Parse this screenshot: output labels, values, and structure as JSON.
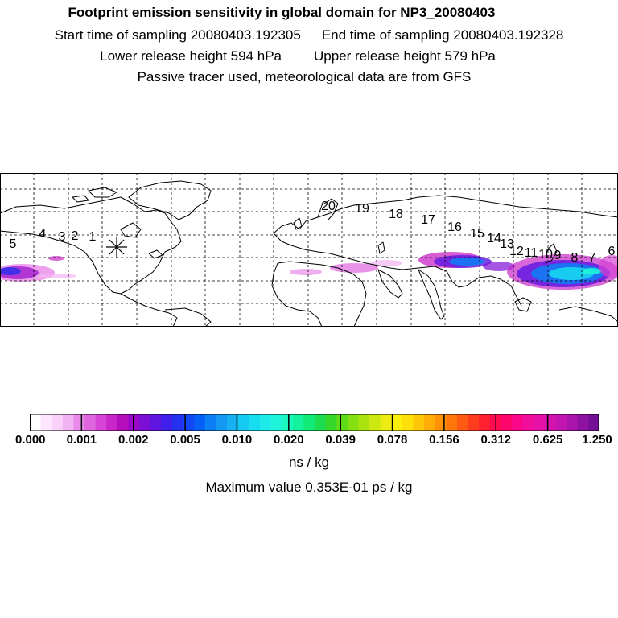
{
  "header": {
    "title": "Footprint emission sensitivity in global domain for NP3_20080403",
    "start_label": "Start time of sampling 20080403.192305",
    "end_label": "End time of sampling 20080403.192328",
    "lower_label": "Lower release height  594 hPa",
    "upper_label": "Upper release height  579 hPa",
    "info": "Passive tracer used, meteorological data are from GFS"
  },
  "map": {
    "receptor_labels": [
      "1",
      "2",
      "3",
      "4",
      "5",
      "6",
      "7",
      "8",
      "9",
      "10",
      "11",
      "12",
      "13",
      "14",
      "15",
      "16",
      "17",
      "18",
      "19",
      "20"
    ],
    "release_marker": "star-marker"
  },
  "legend": {
    "tick_labels": [
      "0.000",
      "0.001",
      "0.002",
      "0.005",
      "0.010",
      "0.020",
      "0.039",
      "0.078",
      "0.156",
      "0.312",
      "0.625",
      "1.250"
    ],
    "units": "ns / kg",
    "max_value": "Maximum value  0.353E-01 ps / kg",
    "colors": [
      "#ffffff",
      "#fde6fd",
      "#f8d0f8",
      "#f2b3f2",
      "#e98ae9",
      "#df66df",
      "#d544d5",
      "#c826c8",
      "#b50fbd",
      "#9909c8",
      "#7d0ed6",
      "#5f16e1",
      "#3f1fe9",
      "#2630ef",
      "#1248f4",
      "#0660f7",
      "#0b80f6",
      "#1399f3",
      "#17b1f1",
      "#16c9f0",
      "#18dcef",
      "#1eeaea",
      "#1ef4d8",
      "#1af7bf",
      "#14f29d",
      "#12ea78",
      "#1cdd50",
      "#37d82a",
      "#5edb17",
      "#84e010",
      "#a9e40e",
      "#cde710",
      "#ecec12",
      "#fbf00c",
      "#ffdf0a",
      "#ffc608",
      "#ffac06",
      "#ff9207",
      "#ff770b",
      "#ff5b14",
      "#ff3d1e",
      "#ff2130",
      "#ff0c50",
      "#ff056e",
      "#fb088a",
      "#f20e9c",
      "#e612a8",
      "#d514ae",
      "#c114b0",
      "#a914ab",
      "#8e12a2",
      "#730f95"
    ]
  }
}
